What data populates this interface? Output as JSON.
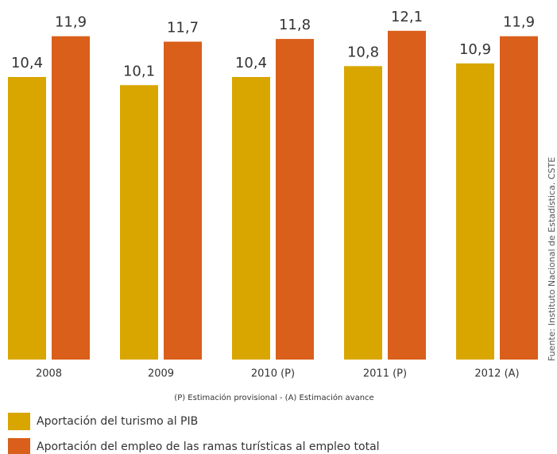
{
  "chart_data": {
    "type": "bar",
    "categories": [
      "2008",
      "2009",
      "2010 (P)",
      "2011 (P)",
      "2012 (A)"
    ],
    "series": [
      {
        "name": "Aportación del turismo al PIB",
        "color": "#d9a600",
        "values": [
          10.4,
          10.1,
          10.4,
          10.8,
          10.9
        ],
        "value_labels": [
          "10,4",
          "10,1",
          "10,4",
          "10,8",
          "10,9"
        ]
      },
      {
        "name": "Aportación del empleo de las ramas turísticas al empleo total",
        "color": "#d95f1a",
        "values": [
          11.9,
          11.7,
          11.8,
          12.1,
          11.9
        ],
        "value_labels": [
          "11,9",
          "11,7",
          "11,8",
          "12,1",
          "11,9"
        ]
      }
    ],
    "ylim": [
      0,
      13
    ],
    "note": "(P)  Estimación provisional  -  (A) Estimación avance",
    "source": "Fuente: Instituto Nacional de Estadística. CSTE"
  }
}
